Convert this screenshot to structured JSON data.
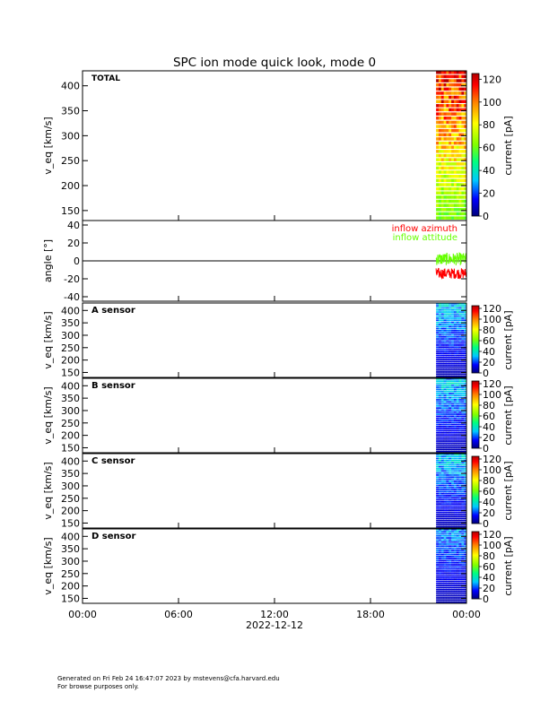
{
  "chart_data": {
    "type": "heatmap",
    "title": "SPC ion mode quick look, mode 0",
    "date_label": "2022-12-12",
    "x_ticks": [
      "00:00",
      "06:00",
      "12:00",
      "18:00",
      "00:00"
    ],
    "data_interval_hours": [
      22.1,
      24.0
    ],
    "panels": [
      {
        "id": "total",
        "label": "TOTAL",
        "ylabel": "v_eq [km/s]",
        "ylim": [
          130,
          430
        ],
        "yticks": [
          150,
          200,
          250,
          300,
          350,
          400
        ],
        "colorbar_label": "current [pA]",
        "colorbar_range": [
          0,
          125
        ],
        "colorbar_ticks": [
          0,
          20,
          40,
          60,
          80,
          100,
          120
        ],
        "approx_peak_pA": 120
      },
      {
        "id": "angle",
        "type": "line",
        "ylabel": "angle [°]",
        "ylim": [
          -45,
          45
        ],
        "yticks": [
          -40,
          -20,
          0,
          20,
          40
        ],
        "series": [
          {
            "name": "inflow azimuth",
            "color": "#ff0000",
            "approx_mean_deg": -14
          },
          {
            "name": "inflow attitude",
            "color": "#66ff00",
            "approx_mean_deg": 2
          }
        ]
      },
      {
        "id": "a",
        "label": "A sensor",
        "ylabel": "v_eq [km/s]",
        "ylim": [
          130,
          430
        ],
        "yticks": [
          150,
          200,
          250,
          300,
          350,
          400
        ],
        "colorbar_label": "current [pA]",
        "colorbar_range": [
          0,
          125
        ],
        "colorbar_ticks": [
          0,
          20,
          40,
          60,
          80,
          100,
          120
        ],
        "approx_peak_pA": 40
      },
      {
        "id": "b",
        "label": "B sensor",
        "ylabel": "v_eq [km/s]",
        "ylim": [
          130,
          430
        ],
        "yticks": [
          150,
          200,
          250,
          300,
          350,
          400
        ],
        "colorbar_label": "current [pA]",
        "colorbar_range": [
          0,
          125
        ],
        "colorbar_ticks": [
          0,
          20,
          40,
          60,
          80,
          100,
          120
        ],
        "approx_peak_pA": 40
      },
      {
        "id": "c",
        "label": "C sensor",
        "ylabel": "v_eq [km/s]",
        "ylim": [
          130,
          430
        ],
        "yticks": [
          150,
          200,
          250,
          300,
          350,
          400
        ],
        "colorbar_label": "current [pA]",
        "colorbar_range": [
          0,
          125
        ],
        "colorbar_ticks": [
          0,
          20,
          40,
          60,
          80,
          100,
          120
        ],
        "approx_peak_pA": 40
      },
      {
        "id": "d",
        "label": "D sensor",
        "ylabel": "v_eq [km/s]",
        "ylim": [
          130,
          430
        ],
        "yticks": [
          150,
          200,
          250,
          300,
          350,
          400
        ],
        "colorbar_label": "current [pA]",
        "colorbar_range": [
          0,
          125
        ],
        "colorbar_ticks": [
          0,
          20,
          40,
          60,
          80,
          100,
          120
        ],
        "approx_peak_pA": 30
      }
    ]
  },
  "footer": {
    "line1": "Generated on Fri Feb 24 16:47:07 2023 by mstevens@cfa.harvard.edu",
    "line2": "For browse purposes only."
  }
}
